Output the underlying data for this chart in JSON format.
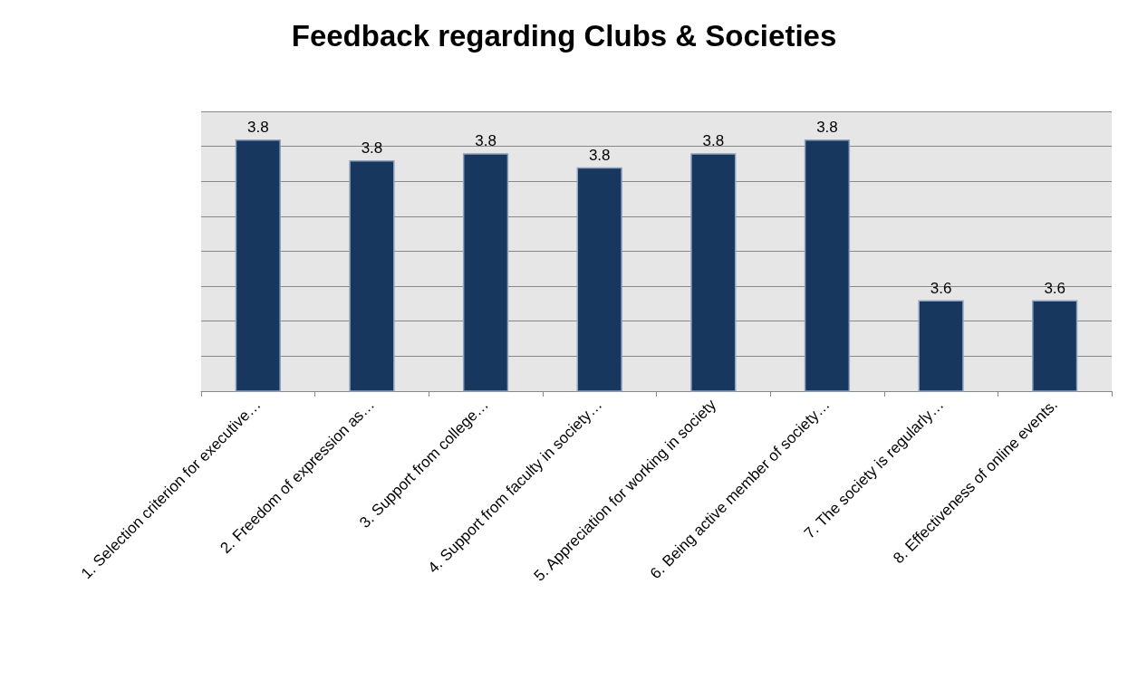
{
  "chart_data": {
    "type": "bar",
    "title": "Feedback regarding Clubs & Societies",
    "categories": [
      "1. Selection criterion for executive…",
      "2. Freedom of expression as…",
      "3. Support from college…",
      "4. Support from faculty in society…",
      "5. Appreciation for working in society",
      "6. Being active member of society…",
      "7. The society is regularly…",
      "8. Effectiveness of online events."
    ],
    "values": [
      3.82,
      3.79,
      3.8,
      3.78,
      3.8,
      3.82,
      3.59,
      3.59
    ],
    "value_labels": [
      "3.8",
      "3.8",
      "3.8",
      "3.8",
      "3.8",
      "3.8",
      "3.6",
      "3.6"
    ],
    "ylim": [
      3.46,
      3.86
    ],
    "yticks": [
      {
        "value": 3.46,
        "label": null
      },
      {
        "value": 3.51,
        "label": null
      },
      {
        "value": 3.56,
        "label": null
      },
      {
        "value": 3.61,
        "label": null
      },
      {
        "value": 3.66,
        "label": null
      },
      {
        "value": 3.71,
        "label": null
      },
      {
        "value": 3.76,
        "label": null
      },
      {
        "value": 3.81,
        "label": null
      },
      {
        "value": 3.86,
        "label": null
      }
    ],
    "tick_labels": "x",
    "color": "#17375e",
    "grid": "y"
  }
}
